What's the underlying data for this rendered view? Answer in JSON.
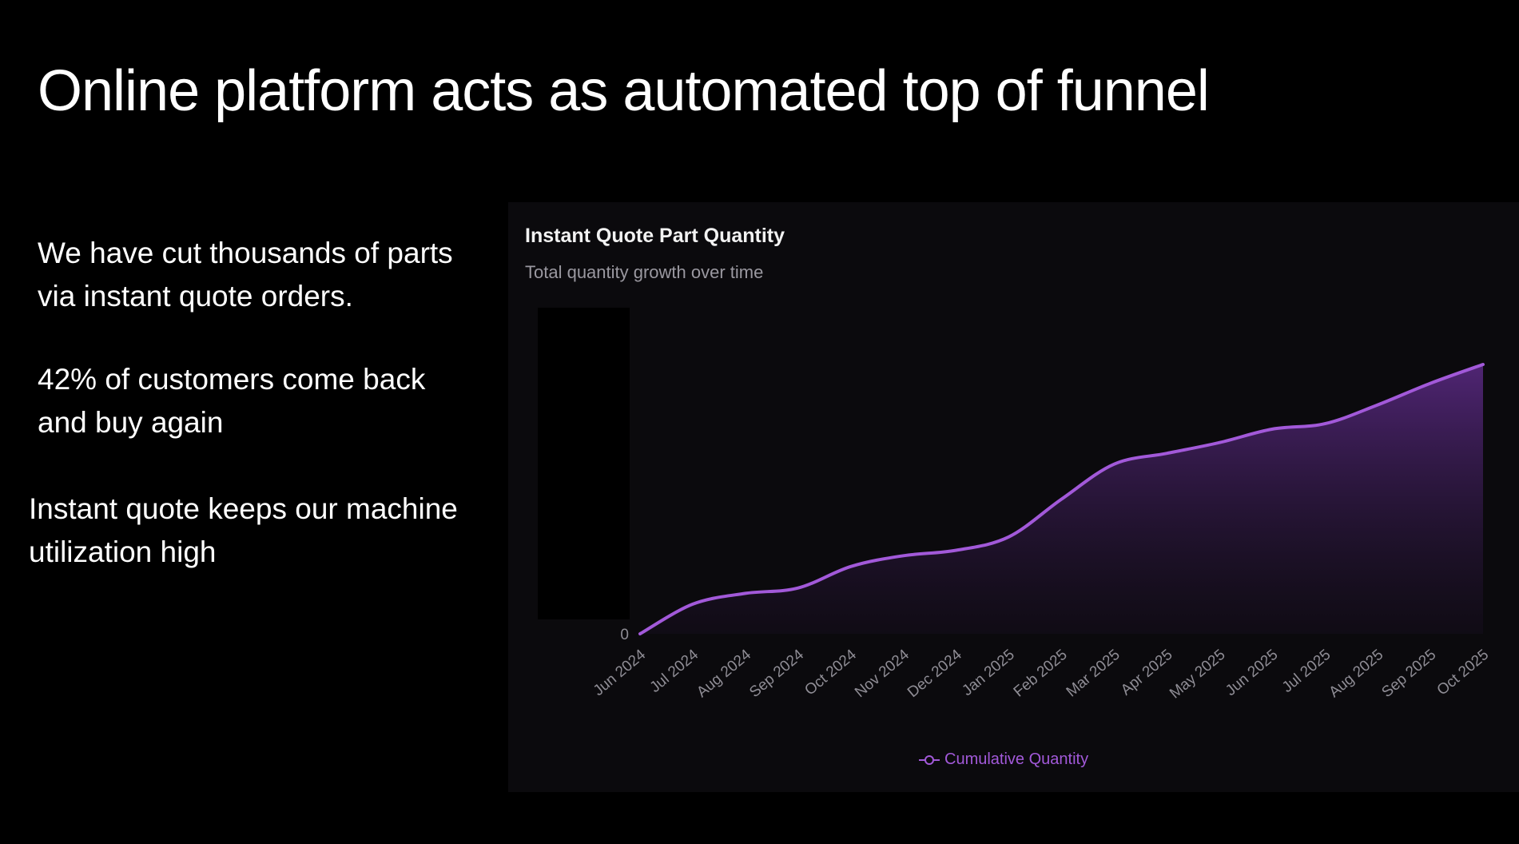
{
  "slide": {
    "title": "Online platform acts as automated top of funnel",
    "bullets": [
      "We have cut thousands of parts\nvia instant quote orders.",
      "42% of customers come back\nand buy again",
      "Instant quote keeps our machine\nutilization high"
    ]
  },
  "colors": {
    "background": "#000000",
    "panel": "#0b0a0d",
    "series_line": "#a259d9",
    "area_top": "#5c2a86",
    "tick_label": "#8f8d95"
  },
  "chart_data": {
    "type": "area",
    "title": "Instant Quote Part Quantity",
    "subtitle": "Total quantity growth over time",
    "categories": [
      "Jun 2024",
      "Jul 2024",
      "Aug 2024",
      "Sep 2024",
      "Oct 2024",
      "Nov 2024",
      "Dec 2024",
      "Jan 2025",
      "Feb 2025",
      "Mar 2025",
      "Apr 2025",
      "May 2025",
      "Jun 2025",
      "Jul 2025",
      "Aug 2025",
      "Sep 2025",
      "Oct 2025"
    ],
    "y_tick_labels": [
      "0"
    ],
    "series": [
      {
        "name": "Cumulative Quantity",
        "values": [
          0,
          11,
          15,
          17,
          25,
          29,
          31,
          36,
          50,
          63,
          67,
          71,
          76,
          78,
          85,
          93,
          100
        ]
      }
    ],
    "ylim": [
      0,
      100
    ],
    "legend_position": "bottom",
    "grid": false
  }
}
